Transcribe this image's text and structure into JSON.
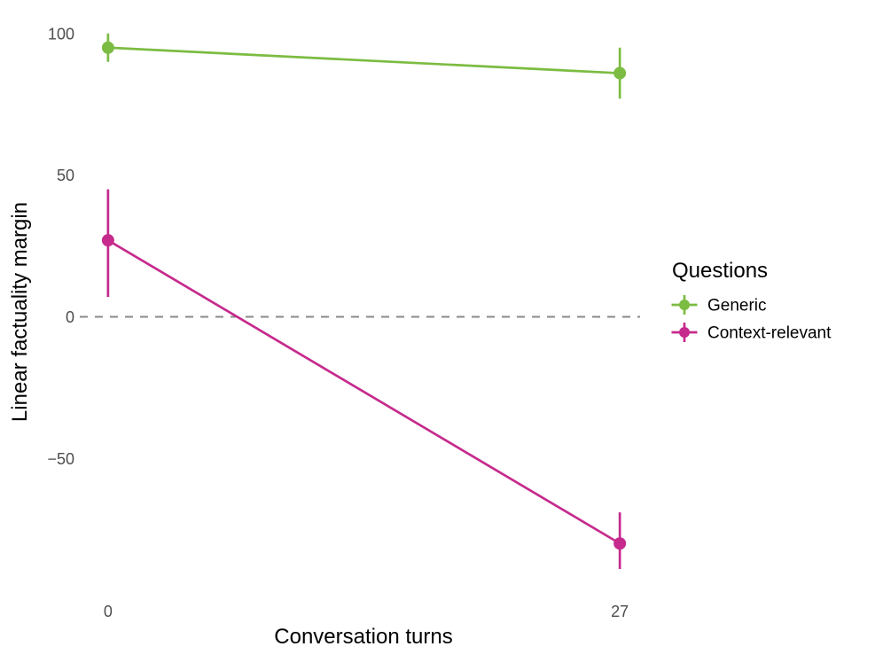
{
  "chart_data": {
    "type": "line",
    "subtype": "pointrange-line",
    "title": "",
    "xlabel": "Conversation turns",
    "ylabel": "Linear factuality margin",
    "x_tick_values": [
      0,
      27
    ],
    "x_tick_labels": [
      "0",
      "27"
    ],
    "y_tick_values": [
      100,
      50,
      0,
      -50
    ],
    "y_tick_labels": [
      "100",
      "50",
      "0",
      "−50"
    ],
    "xlim": [
      -1.35,
      28.35
    ],
    "ylim": [
      -94,
      104
    ],
    "grid": false,
    "reference_line": {
      "y": 0,
      "style": "dashed",
      "color": "#8a8a8a"
    },
    "legend": {
      "title": "Questions",
      "position": "right"
    },
    "series": [
      {
        "name": "Generic",
        "color": "#7cbc42",
        "points": [
          {
            "x": 0,
            "y": 95,
            "ymin": 90,
            "ymax": 100
          },
          {
            "x": 27,
            "y": 86,
            "ymin": 77,
            "ymax": 95
          }
        ]
      },
      {
        "name": "Context-relevant",
        "color": "#c62a8c",
        "points": [
          {
            "x": 0,
            "y": 27,
            "ymin": 7,
            "ymax": 45
          },
          {
            "x": 27,
            "y": -80,
            "ymin": -89,
            "ymax": -69
          }
        ]
      }
    ],
    "text_colors": {
      "tick": "#4d4d4d",
      "title": "#000000"
    }
  }
}
